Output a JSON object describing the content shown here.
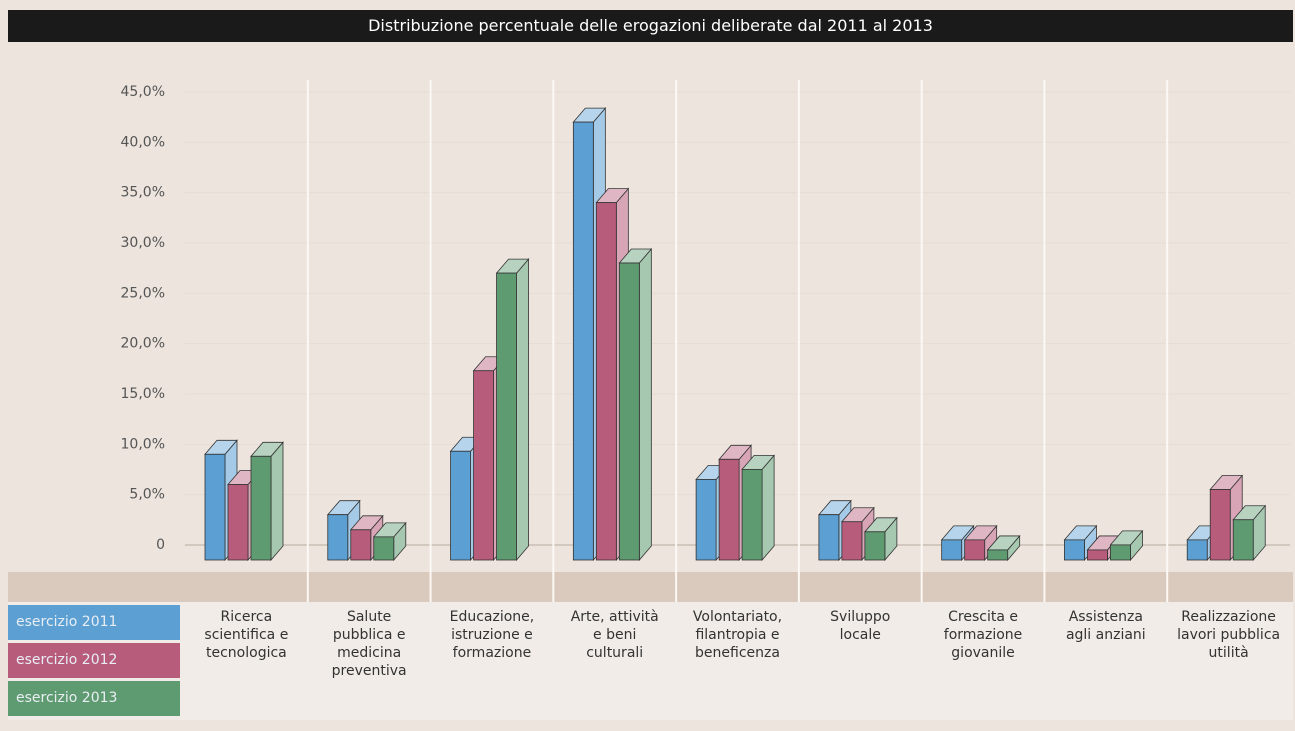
{
  "chart_data": {
    "type": "bar3d",
    "title": "Distribuzione percentuale delle erogazioni deliberate dal 2011 al 2013",
    "categories": [
      "Ricerca\nscientifica e\ntecnologica",
      "Salute\npubblica e\nmedicina\npreventiva",
      "Educazione,\nistruzione e\nformazione",
      "Arte, attività\ne beni\nculturali",
      "Volontariato,\nfilantropia e\nbeneficenza",
      "Sviluppo\nlocale",
      "Crescita e\nformazione\ngiovanile",
      "Assistenza\nagli anziani",
      "Realizzazione\nlavori pubblica\nutilità"
    ],
    "series": [
      {
        "name": "esercizio 2011",
        "color": "#5c9fd3",
        "values": [
          10.5,
          4.5,
          10.8,
          43.5,
          8.0,
          4.5,
          2.0,
          2.0,
          2.0
        ]
      },
      {
        "name": "esercizio 2012",
        "color": "#b85c7c",
        "values": [
          7.5,
          3.0,
          18.8,
          35.5,
          10.0,
          3.8,
          2.0,
          1.0,
          7.0
        ]
      },
      {
        "name": "esercizio 2013",
        "color": "#5f9b70",
        "values": [
          10.3,
          2.3,
          28.5,
          29.5,
          9.0,
          2.8,
          1.0,
          1.5,
          4.0
        ]
      }
    ],
    "ylim": [
      0,
      45
    ],
    "yticks": [
      0,
      {
        "value": 5,
        "label": "5,0%"
      },
      {
        "value": 10,
        "label": "10,0%"
      },
      {
        "value": 15,
        "label": "15,0%"
      },
      {
        "value": 20,
        "label": "20,0%"
      },
      {
        "value": 25,
        "label": "25,0%"
      },
      {
        "value": 30,
        "label": "30,0%"
      },
      {
        "value": 35,
        "label": "35,0%"
      },
      {
        "value": 40,
        "label": "40,0%"
      },
      {
        "value": 45,
        "label": "45,0%"
      }
    ],
    "grid": true
  }
}
